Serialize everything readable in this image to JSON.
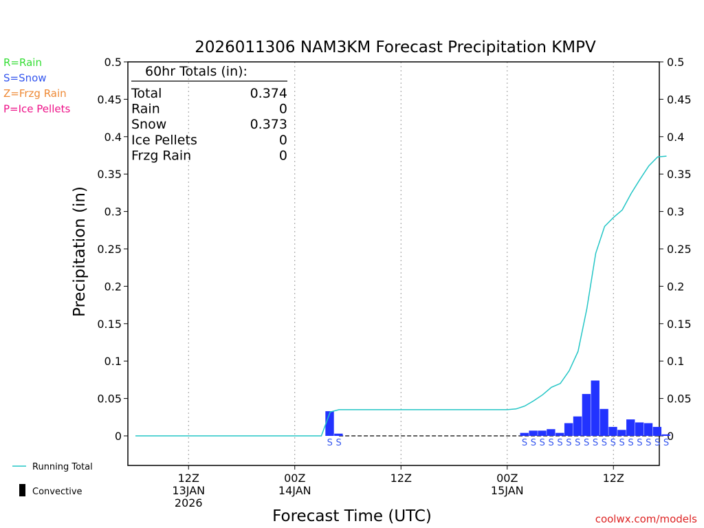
{
  "chart_data": {
    "type": "bar",
    "title": "2026011306 NAM3KM Forecast Precipitation KMPV",
    "xlabel": "Forecast Time (UTC)",
    "ylabel": "Precipitation (in)",
    "ylim": [
      -0.04,
      0.5
    ],
    "yticks": [
      0,
      0.05,
      0.1,
      0.15,
      0.2,
      0.25,
      0.3,
      0.35,
      0.4,
      0.45,
      0.5
    ],
    "ytick_labels": [
      "0",
      "0.05",
      "0.1",
      "0.15",
      "0.2",
      "0.25",
      "0.3",
      "0.35",
      "0.4",
      "0.45",
      "0.5"
    ],
    "xlim_hours": [
      -1,
      60
    ],
    "xticks": [
      {
        "hour": 6,
        "lines": [
          "12Z",
          "13JAN",
          "2026"
        ]
      },
      {
        "hour": 18,
        "lines": [
          "00Z",
          "14JAN"
        ]
      },
      {
        "hour": 30,
        "lines": [
          "12Z"
        ]
      },
      {
        "hour": 42,
        "lines": [
          "00Z",
          "15JAN"
        ]
      },
      {
        "hour": 54,
        "lines": [
          "12Z"
        ]
      }
    ],
    "legend_types": [
      {
        "label": "R=Rain",
        "color": "#33dd33"
      },
      {
        "label": "S=Snow",
        "color": "#3355ee"
      },
      {
        "label": "Z=Frzg Rain",
        "color": "#ee8833"
      },
      {
        "label": "P=Ice Pellets",
        "color": "#ee1188"
      }
    ],
    "legend_lines": {
      "running_total": "Running Total",
      "convective": "Convective"
    },
    "totals": {
      "header": "60hr Totals (in):",
      "rows": [
        {
          "label": "Total",
          "value": "0.374"
        },
        {
          "label": "Rain",
          "value": "0"
        },
        {
          "label": "Snow",
          "value": "0.373"
        },
        {
          "label": "Ice Pellets",
          "value": "0"
        },
        {
          "label": "Frzg Rain",
          "value": "0"
        }
      ]
    },
    "series": [
      {
        "name": "Hourly Snow",
        "color": "#2233ff",
        "hours": [
          22,
          23,
          44,
          45,
          46,
          47,
          48,
          49,
          50,
          51,
          52,
          53,
          54,
          55,
          56,
          57,
          58,
          59,
          60
        ],
        "values": [
          0.033,
          0.003,
          0.004,
          0.007,
          0.007,
          0.009,
          0.004,
          0.017,
          0.026,
          0.056,
          0.074,
          0.036,
          0.012,
          0.008,
          0.022,
          0.018,
          0.017,
          0.012,
          0.002
        ],
        "ptype_labels": [
          "S",
          "S",
          "S",
          "S",
          "S",
          "S",
          "S",
          "S",
          "S",
          "S",
          "S",
          "S",
          "S",
          "S",
          "S",
          "S",
          "S",
          "S",
          "S"
        ]
      },
      {
        "name": "Running Total",
        "color": "#22c5c5",
        "hours": [
          0,
          21,
          22,
          23,
          24,
          30,
          36,
          42,
          43,
          44,
          45,
          46,
          47,
          48,
          49,
          50,
          51,
          52,
          53,
          54,
          55,
          56,
          57,
          58,
          59,
          60
        ],
        "values": [
          0,
          0,
          0.032,
          0.035,
          0.035,
          0.035,
          0.035,
          0.035,
          0.036,
          0.04,
          0.047,
          0.055,
          0.065,
          0.07,
          0.087,
          0.113,
          0.17,
          0.244,
          0.28,
          0.292,
          0.302,
          0.324,
          0.343,
          0.361,
          0.373,
          0.374
        ]
      }
    ],
    "zero_line_dashed_hours": [
      23,
      60
    ]
  },
  "credit": "coolwx.com/models"
}
